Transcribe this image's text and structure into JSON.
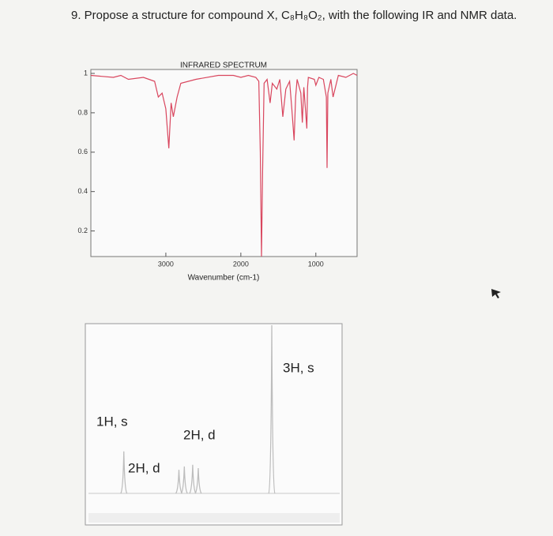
{
  "question": "9. Propose a structure for compound X, C₈H₈O₂, with the following IR and NMR data.",
  "chart_data": [
    {
      "type": "line",
      "title": "INFRARED SPECTRUM",
      "x_label": "Wavenumber (cm-1)",
      "color": "#d9465e",
      "xlim": [
        4000,
        450
      ],
      "xticks": [
        3000,
        2000,
        1000
      ],
      "ylim": [
        0.07,
        1.02
      ],
      "yticks": [
        0.2,
        0.4,
        0.6,
        0.8,
        1
      ],
      "x": [
        4000,
        3700,
        3600,
        3500,
        3300,
        3150,
        3100,
        3050,
        3000,
        2960,
        2930,
        2900,
        2850,
        2800,
        2600,
        2300,
        2100,
        2000,
        1900,
        1800,
        1760,
        1740,
        1725,
        1710,
        1690,
        1650,
        1610,
        1580,
        1520,
        1480,
        1440,
        1400,
        1350,
        1320,
        1290,
        1270,
        1250,
        1200,
        1180,
        1160,
        1120,
        1110,
        1100,
        1020,
        1000,
        960,
        900,
        860,
        850,
        840,
        800,
        770,
        700,
        600,
        500,
        450
      ],
      "values": [
        0.99,
        0.98,
        0.99,
        0.97,
        0.98,
        0.96,
        0.88,
        0.9,
        0.82,
        0.62,
        0.85,
        0.78,
        0.88,
        0.95,
        0.97,
        0.99,
        0.99,
        0.98,
        0.99,
        0.98,
        0.96,
        0.6,
        0.07,
        0.5,
        0.95,
        0.97,
        0.85,
        0.95,
        0.92,
        0.97,
        0.78,
        0.92,
        0.96,
        0.82,
        0.66,
        0.88,
        0.97,
        0.9,
        0.75,
        0.93,
        0.72,
        0.93,
        0.98,
        0.97,
        0.94,
        0.98,
        0.97,
        0.88,
        0.52,
        0.9,
        0.97,
        0.88,
        0.99,
        0.98,
        1.0,
        0.99
      ]
    },
    {
      "type": "nmr",
      "color": "#bdbdbd",
      "xlim": [
        13,
        -0.5
      ],
      "ylim": [
        0,
        1
      ],
      "x": [
        11.1,
        8.14,
        7.85,
        7.4,
        7.1,
        3.15
      ],
      "values": [
        0.25,
        0.14,
        0.16,
        0.17,
        0.15,
        1.0
      ],
      "annotations": [
        "3H, s",
        "1H, s",
        "2H, d",
        "2H, d"
      ]
    }
  ]
}
